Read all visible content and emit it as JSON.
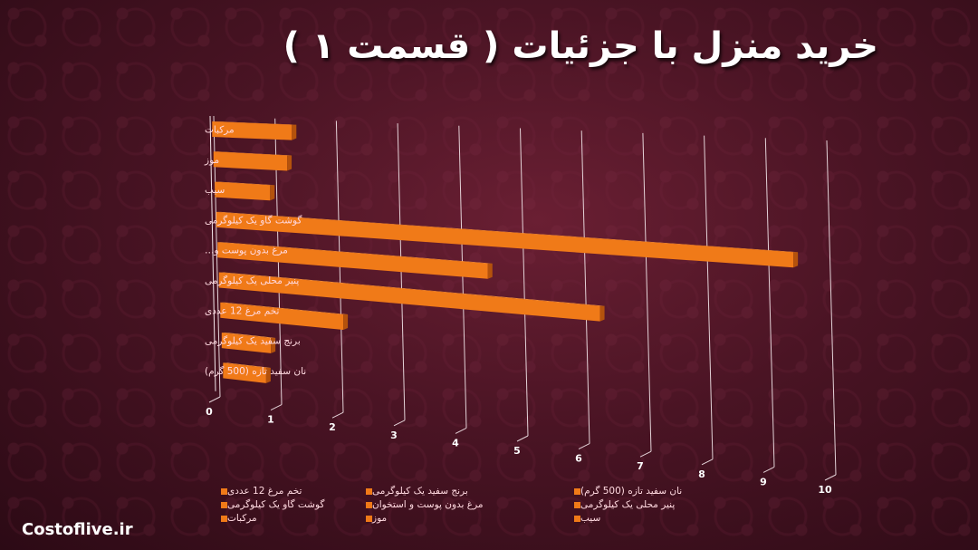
{
  "title": "خرید منزل با جزئیات ( قسمت ۱ )",
  "brand": "Costoflive.ir",
  "colors": {
    "bar_front": "#f07a18",
    "bar_top": "#ffa04a",
    "bar_side": "#b4520c"
  },
  "chart_data": {
    "type": "bar",
    "orientation": "horizontal",
    "categories": [
      "مرکبات",
      "موز",
      "سیب",
      "گوشت گاو یک کیلوگرمی",
      "مرغ بدون پوست و…",
      "پنیر محلی یک کیلوگرمی",
      "تخم مرغ 12 عددی",
      "برنج سفید یک کیلوگرمی",
      "نان سفید تازه (500 گرم)"
    ],
    "values": [
      1.3,
      1.2,
      0.9,
      9.4,
      4.4,
      6.2,
      2.0,
      0.8,
      0.7
    ],
    "xlim": [
      0,
      10
    ],
    "xticks": [
      "0",
      "1",
      "2",
      "3",
      "4",
      "5",
      "6",
      "7",
      "8",
      "9",
      "10"
    ],
    "grid": true,
    "legend_position": "bottom",
    "legend": [
      "نان سفید تازه (500 گرم)",
      "برنج سفید یک کیلوگرمی",
      "تخم مرغ 12 عددی",
      "پنیر محلی یک کیلوگرمی",
      "مرغ بدون پوست و استخوان",
      "گوشت گاو یک کیلوگرمی",
      "سیب",
      "موز",
      "مرکبات"
    ]
  }
}
